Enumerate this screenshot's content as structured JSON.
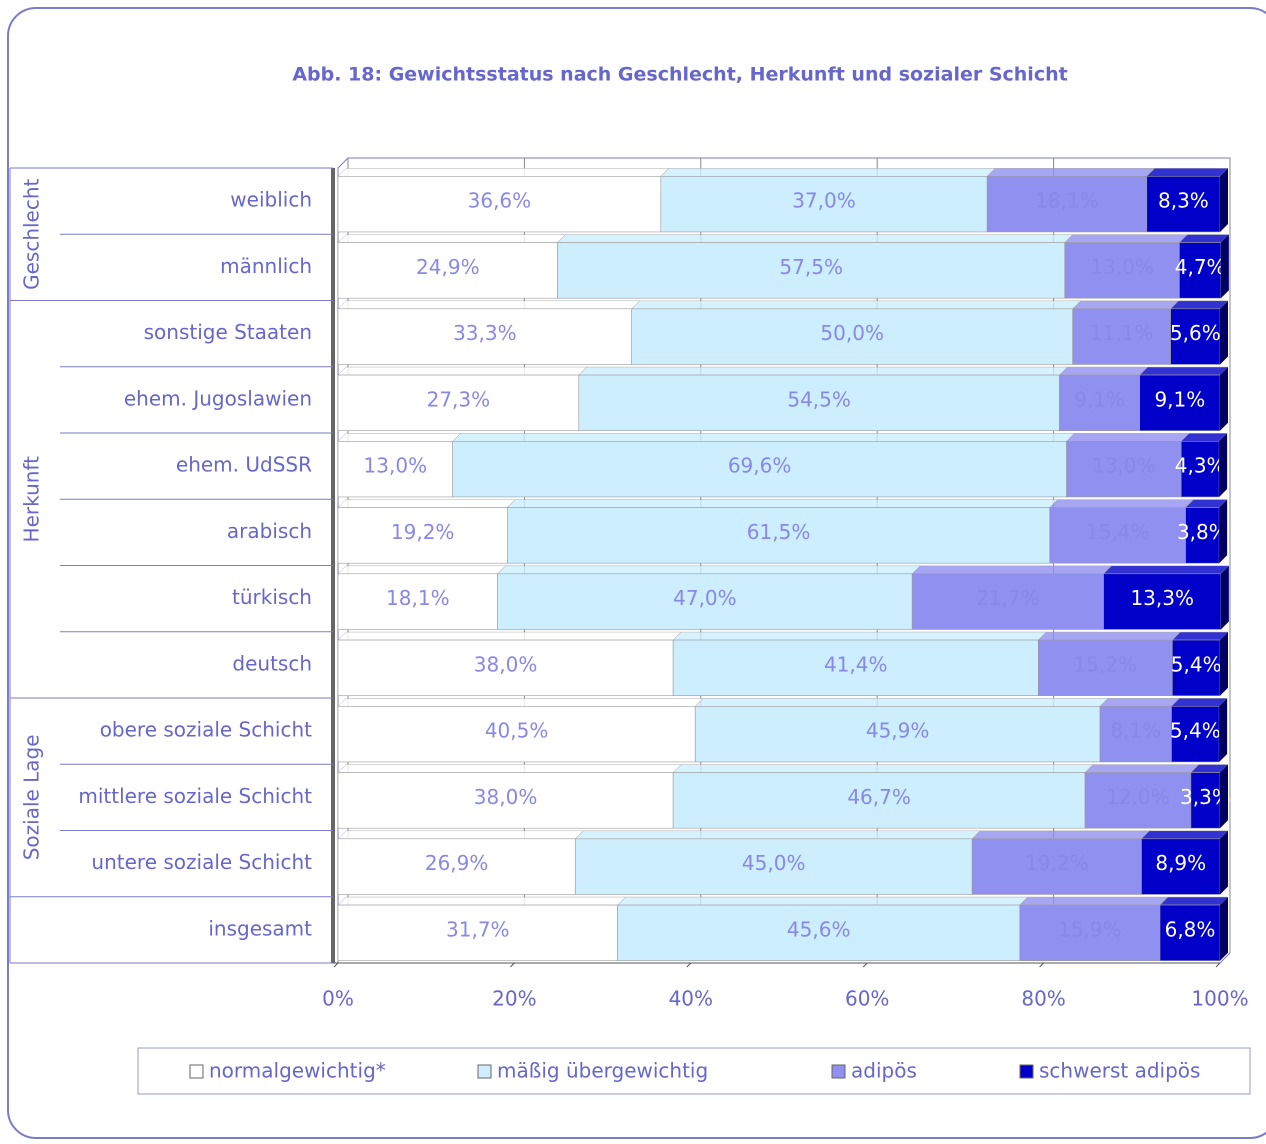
{
  "chart_data": {
    "type": "stacked_barh",
    "title": "Abb. 18: Gewichtsstatus nach Geschlecht, Herkunft und sozialer Schicht",
    "group_labels": [
      "Geschlecht",
      "Herkunft",
      "Soziale Lage"
    ],
    "categories": [
      "weiblich",
      "männlich",
      "sonstige Staaten",
      "ehem. Jugoslawien",
      "ehem. UdSSR",
      "arabisch",
      "türkisch",
      "deutsch",
      "obere soziale Schicht",
      "mittlere soziale Schicht",
      "untere soziale Schicht",
      "insgesamt"
    ],
    "series": [
      {
        "name": "normalgewichtig*",
        "color": "#ffffff",
        "values": [
          36.6,
          24.9,
          33.3,
          27.3,
          13.0,
          19.2,
          18.1,
          38.0,
          40.5,
          38.0,
          26.9,
          31.7
        ],
        "value_labels": [
          "36,6%",
          "24,9%",
          "33,3%",
          "27,3%",
          "13,0%",
          "19,2%",
          "18,1%",
          "38,0%",
          "40,5%",
          "38,0%",
          "26,9%",
          "31,7%"
        ]
      },
      {
        "name": "mäßig übergewichtig",
        "color": "#cceeff",
        "values": [
          37.0,
          57.5,
          50.0,
          54.5,
          69.6,
          61.5,
          47.0,
          41.4,
          45.9,
          46.7,
          45.0,
          45.6
        ],
        "value_labels": [
          "37,0%",
          "57,5%",
          "50,0%",
          "54,5%",
          "69,6%",
          "61,5%",
          "47,0%",
          "41,4%",
          "45,9%",
          "46,7%",
          "45,0%",
          "45,6%"
        ]
      },
      {
        "name": "adipös",
        "color": "#9090f0",
        "values": [
          18.1,
          13.0,
          11.1,
          9.1,
          13.0,
          15.4,
          21.7,
          15.2,
          8.1,
          12.0,
          19.2,
          15.9
        ],
        "value_labels": [
          "18,1%",
          "13,0%",
          "11,1%",
          "9,1%",
          "13,0%",
          "15,4%",
          "21,7%",
          "15,2%",
          "8,1%",
          "12,0%",
          "19,2%",
          "15,9%"
        ]
      },
      {
        "name": "schwerst adipös",
        "color": "#0000c8",
        "values": [
          8.3,
          4.7,
          5.6,
          9.1,
          4.3,
          3.8,
          13.3,
          5.4,
          5.4,
          3.3,
          8.9,
          6.8
        ],
        "value_labels": [
          "8,3%",
          "4,7%",
          "5,6%",
          "9,1%",
          "4,3%",
          "3,8%",
          "13,3%",
          "5,4%",
          "5,4%",
          "3,3%",
          "8,9%",
          "6,8%"
        ]
      }
    ],
    "xlim": [
      0,
      100
    ],
    "xticks": [
      {
        "value": 0,
        "label": "0%"
      },
      {
        "value": 20,
        "label": "20%"
      },
      {
        "value": 40,
        "label": "40%"
      },
      {
        "value": 60,
        "label": "60%"
      },
      {
        "value": 80,
        "label": "80%"
      },
      {
        "value": 100,
        "label": "100%"
      }
    ],
    "grid": true
  }
}
